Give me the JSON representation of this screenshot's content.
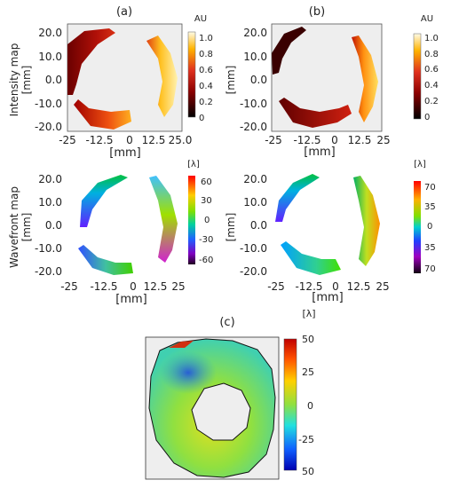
{
  "panels": {
    "a": {
      "label": "(a)"
    },
    "b": {
      "label": "(b)"
    },
    "c": {
      "label": "(c)"
    }
  },
  "row_labels": {
    "intensity": "Intensity map",
    "wavefront": "Wavefront map"
  },
  "axes": {
    "unit": "[mm]",
    "a_int": {
      "y_ticks": [
        "20.0",
        "10.0",
        "0.0",
        "-10.0",
        "-20.0"
      ],
      "x_ticks": [
        "-25",
        "-12.5",
        "0",
        "12.5",
        "25.0"
      ]
    },
    "b_int": {
      "y_ticks": [
        "20.0",
        "10.0",
        "0.0",
        "-10.0",
        "-20.0"
      ],
      "x_ticks": [
        "-25",
        "-12.5",
        "0",
        "12.5",
        "25"
      ]
    },
    "a_wf": {
      "y_ticks": [
        "20.0",
        "10.0",
        "0.0",
        "-10.0",
        "-20.0"
      ],
      "x_ticks": [
        "-25",
        "-12.5",
        "0",
        "12.5",
        "25"
      ]
    },
    "b_wf": {
      "y_ticks": [
        "20.0",
        "10.0",
        "0.0",
        "-10.0",
        "-20.0"
      ],
      "x_ticks": [
        "-25",
        "-12.5",
        "0",
        "12.5",
        "25"
      ]
    }
  },
  "colorbars": {
    "a_int": {
      "unit": "AU",
      "ticks": [
        "1.0",
        "0.8",
        "0.6",
        "0.4",
        "0.2",
        "0"
      ]
    },
    "b_int": {
      "unit": "AU",
      "ticks": [
        "1.0",
        "0.8",
        "0.6",
        "0.4",
        "0.2",
        "0"
      ]
    },
    "a_wf": {
      "unit": "[λ]",
      "ticks": [
        "60",
        "30",
        "0",
        "-30",
        "-60"
      ]
    },
    "b_wf": {
      "unit": "[λ]",
      "ticks": [
        "70",
        "35",
        "0",
        "35",
        "70"
      ]
    },
    "c": {
      "unit": "[λ]",
      "ticks": [
        "50",
        "25",
        "0",
        "-25",
        "50"
      ]
    }
  }
}
